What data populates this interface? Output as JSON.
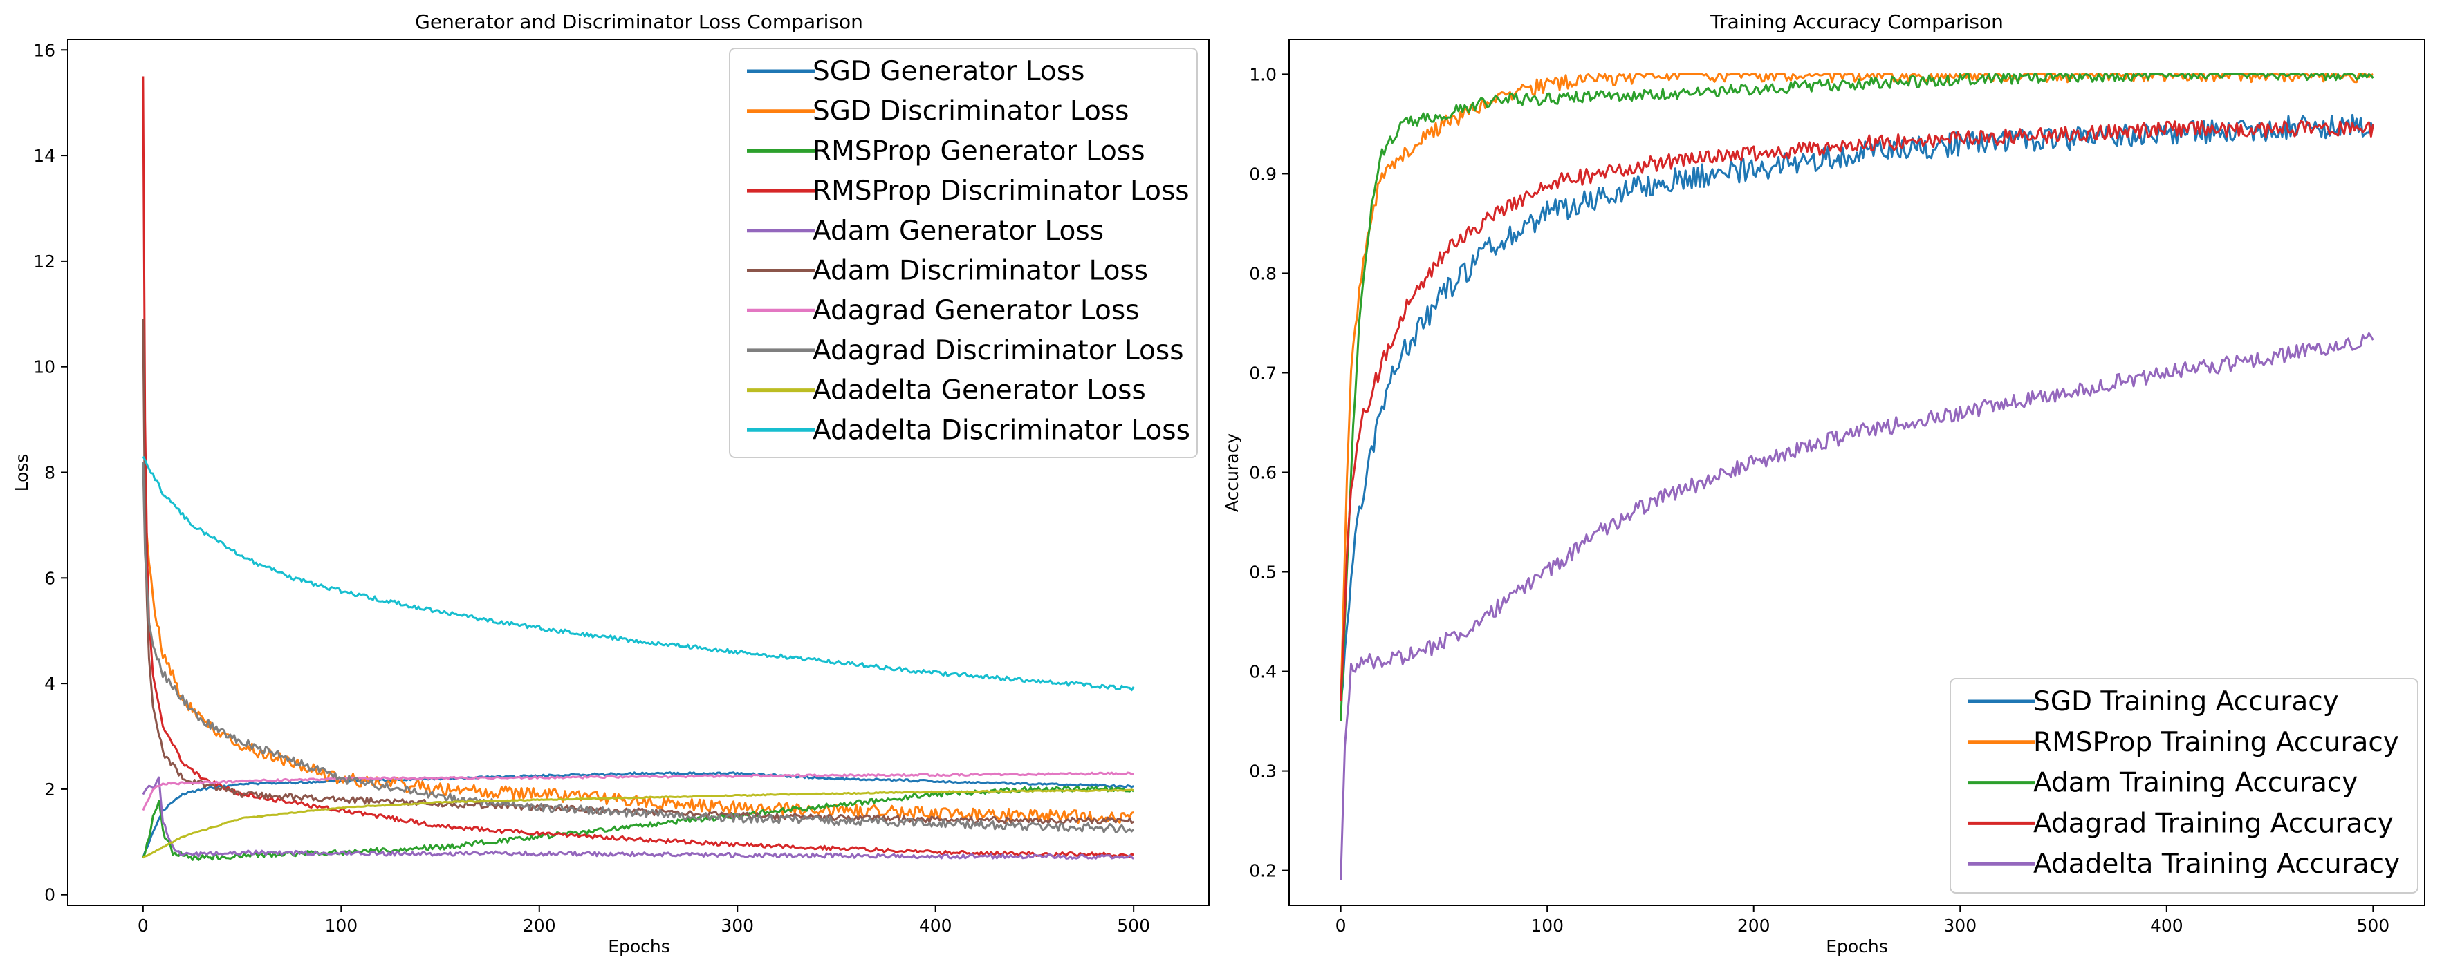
{
  "chart_data": [
    {
      "type": "line",
      "title": "Generator and Discriminator Loss Comparison",
      "xlabel": "Epochs",
      "ylabel": "Loss",
      "xlim": [
        -38,
        538
      ],
      "ylim": [
        -0.2,
        16.2
      ],
      "xticks": [
        0,
        100,
        200,
        300,
        400,
        500
      ],
      "yticks": [
        0,
        2,
        4,
        6,
        8,
        10,
        12,
        14,
        16
      ],
      "legend_position": "top-right",
      "grid": false,
      "series": [
        {
          "name": "SGD Generator Loss",
          "color": "#1f77b4",
          "noise": 0.02,
          "points": [
            [
              0,
              0.7
            ],
            [
              5,
              1.2
            ],
            [
              10,
              1.6
            ],
            [
              20,
              1.9
            ],
            [
              30,
              2.0
            ],
            [
              50,
              2.1
            ],
            [
              100,
              2.15
            ],
            [
              150,
              2.2
            ],
            [
              200,
              2.25
            ],
            [
              250,
              2.3
            ],
            [
              300,
              2.3
            ],
            [
              350,
              2.2
            ],
            [
              400,
              2.15
            ],
            [
              450,
              2.1
            ],
            [
              500,
              2.05
            ]
          ]
        },
        {
          "name": "SGD Discriminator Loss",
          "color": "#ff7f0e",
          "noise": 0.12,
          "points": [
            [
              0,
              8.0
            ],
            [
              1,
              7.3
            ],
            [
              3,
              6.4
            ],
            [
              5,
              5.6
            ],
            [
              10,
              4.6
            ],
            [
              20,
              3.7
            ],
            [
              30,
              3.3
            ],
            [
              50,
              2.8
            ],
            [
              75,
              2.5
            ],
            [
              100,
              2.2
            ],
            [
              150,
              2.0
            ],
            [
              200,
              1.9
            ],
            [
              300,
              1.65
            ],
            [
              400,
              1.55
            ],
            [
              500,
              1.45
            ]
          ]
        },
        {
          "name": "RMSProp Generator Loss",
          "color": "#2ca02c",
          "noise": 0.05,
          "points": [
            [
              0,
              0.7
            ],
            [
              3,
              1.1
            ],
            [
              5,
              1.5
            ],
            [
              8,
              1.8
            ],
            [
              10,
              1.2
            ],
            [
              15,
              0.8
            ],
            [
              25,
              0.7
            ],
            [
              100,
              0.8
            ],
            [
              150,
              0.9
            ],
            [
              200,
              1.1
            ],
            [
              250,
              1.3
            ],
            [
              300,
              1.5
            ],
            [
              350,
              1.7
            ],
            [
              400,
              1.9
            ],
            [
              450,
              2.0
            ],
            [
              500,
              2.0
            ]
          ]
        },
        {
          "name": "RMSProp Discriminator Loss",
          "color": "#d62728",
          "noise": 0.04,
          "points": [
            [
              0,
              15.5
            ],
            [
              1,
              9.0
            ],
            [
              2,
              6.5
            ],
            [
              3,
              5.2
            ],
            [
              5,
              4.2
            ],
            [
              10,
              3.2
            ],
            [
              20,
              2.5
            ],
            [
              30,
              2.2
            ],
            [
              50,
              1.9
            ],
            [
              100,
              1.6
            ],
            [
              150,
              1.3
            ],
            [
              200,
              1.15
            ],
            [
              300,
              0.95
            ],
            [
              400,
              0.8
            ],
            [
              500,
              0.75
            ]
          ]
        },
        {
          "name": "Adam Generator Loss",
          "color": "#9467bd",
          "noise": 0.04,
          "points": [
            [
              0,
              1.9
            ],
            [
              3,
              2.1
            ],
            [
              5,
              2.0
            ],
            [
              8,
              2.2
            ],
            [
              10,
              1.4
            ],
            [
              15,
              0.9
            ],
            [
              20,
              0.75
            ],
            [
              50,
              0.8
            ],
            [
              100,
              0.78
            ],
            [
              200,
              0.78
            ],
            [
              300,
              0.75
            ],
            [
              400,
              0.73
            ],
            [
              500,
              0.72
            ]
          ]
        },
        {
          "name": "Adam Discriminator Loss",
          "color": "#8c564b",
          "noise": 0.06,
          "points": [
            [
              0,
              10.9
            ],
            [
              1,
              7.0
            ],
            [
              2,
              5.5
            ],
            [
              3,
              4.5
            ],
            [
              5,
              3.6
            ],
            [
              10,
              2.7
            ],
            [
              20,
              2.2
            ],
            [
              50,
              1.9
            ],
            [
              100,
              1.8
            ],
            [
              200,
              1.65
            ],
            [
              300,
              1.5
            ],
            [
              400,
              1.42
            ],
            [
              500,
              1.4
            ]
          ]
        },
        {
          "name": "Adagrad Generator Loss",
          "color": "#e377c2",
          "noise": 0.02,
          "points": [
            [
              0,
              1.6
            ],
            [
              5,
              2.0
            ],
            [
              10,
              2.1
            ],
            [
              50,
              2.15
            ],
            [
              100,
              2.2
            ],
            [
              200,
              2.22
            ],
            [
              300,
              2.25
            ],
            [
              400,
              2.27
            ],
            [
              500,
              2.3
            ]
          ]
        },
        {
          "name": "Adagrad Discriminator Loss",
          "color": "#7f7f7f",
          "noise": 0.08,
          "points": [
            [
              0,
              8.2
            ],
            [
              1,
              6.5
            ],
            [
              3,
              5.2
            ],
            [
              5,
              4.7
            ],
            [
              10,
              4.2
            ],
            [
              20,
              3.7
            ],
            [
              30,
              3.3
            ],
            [
              50,
              2.9
            ],
            [
              100,
              2.2
            ],
            [
              150,
              1.85
            ],
            [
              200,
              1.65
            ],
            [
              300,
              1.45
            ],
            [
              400,
              1.35
            ],
            [
              500,
              1.25
            ]
          ]
        },
        {
          "name": "Adadelta Generator Loss",
          "color": "#bcbd22",
          "noise": 0.01,
          "points": [
            [
              0,
              0.7
            ],
            [
              20,
              1.1
            ],
            [
              50,
              1.45
            ],
            [
              100,
              1.65
            ],
            [
              150,
              1.75
            ],
            [
              200,
              1.8
            ],
            [
              300,
              1.88
            ],
            [
              400,
              1.95
            ],
            [
              500,
              1.98
            ]
          ]
        },
        {
          "name": "Adadelta Discriminator Loss",
          "color": "#17becf",
          "noise": 0.04,
          "points": [
            [
              0,
              8.3
            ],
            [
              10,
              7.6
            ],
            [
              25,
              7.0
            ],
            [
              50,
              6.4
            ],
            [
              75,
              6.0
            ],
            [
              100,
              5.75
            ],
            [
              150,
              5.35
            ],
            [
              200,
              5.05
            ],
            [
              250,
              4.8
            ],
            [
              300,
              4.6
            ],
            [
              350,
              4.4
            ],
            [
              400,
              4.2
            ],
            [
              450,
              4.05
            ],
            [
              500,
              3.9
            ]
          ]
        }
      ]
    },
    {
      "type": "line",
      "title": "Training Accuracy Comparison",
      "xlabel": "Epochs",
      "ylabel": "Accuracy",
      "xlim": [
        -25,
        525
      ],
      "ylim": [
        0.165,
        1.035
      ],
      "xticks": [
        0,
        100,
        200,
        300,
        400,
        500
      ],
      "yticks": [
        0.2,
        0.3,
        0.4,
        0.5,
        0.6,
        0.7,
        0.8,
        0.9,
        1.0
      ],
      "legend_position": "bottom-right",
      "grid": false,
      "series": [
        {
          "name": "SGD Training Accuracy",
          "color": "#1f77b4",
          "noise": 0.012,
          "points": [
            [
              0,
              0.37
            ],
            [
              5,
              0.5
            ],
            [
              10,
              0.57
            ],
            [
              20,
              0.67
            ],
            [
              30,
              0.72
            ],
            [
              50,
              0.78
            ],
            [
              75,
              0.83
            ],
            [
              100,
              0.86
            ],
            [
              150,
              0.89
            ],
            [
              200,
              0.905
            ],
            [
              250,
              0.92
            ],
            [
              300,
              0.93
            ],
            [
              350,
              0.935
            ],
            [
              400,
              0.94
            ],
            [
              450,
              0.945
            ],
            [
              500,
              0.95
            ]
          ]
        },
        {
          "name": "RMSProp Training Accuracy",
          "color": "#ff7f0e",
          "noise": 0.008,
          "points": [
            [
              0,
              0.37
            ],
            [
              3,
              0.6
            ],
            [
              5,
              0.7
            ],
            [
              10,
              0.8
            ],
            [
              15,
              0.86
            ],
            [
              20,
              0.9
            ],
            [
              30,
              0.92
            ],
            [
              50,
              0.95
            ],
            [
              75,
              0.975
            ],
            [
              100,
              0.99
            ],
            [
              150,
              1.0
            ],
            [
              300,
              1.0
            ],
            [
              500,
              1.0
            ]
          ]
        },
        {
          "name": "Adam Training Accuracy",
          "color": "#2ca02c",
          "noise": 0.006,
          "points": [
            [
              0,
              0.35
            ],
            [
              3,
              0.5
            ],
            [
              6,
              0.65
            ],
            [
              10,
              0.78
            ],
            [
              15,
              0.87
            ],
            [
              20,
              0.92
            ],
            [
              30,
              0.95
            ],
            [
              50,
              0.96
            ],
            [
              75,
              0.975
            ],
            [
              100,
              0.975
            ],
            [
              150,
              0.98
            ],
            [
              200,
              0.985
            ],
            [
              250,
              0.99
            ],
            [
              300,
              0.995
            ],
            [
              400,
              1.0
            ],
            [
              500,
              1.0
            ]
          ]
        },
        {
          "name": "Adagrad Training Accuracy",
          "color": "#d62728",
          "noise": 0.008,
          "points": [
            [
              0,
              0.37
            ],
            [
              3,
              0.52
            ],
            [
              5,
              0.58
            ],
            [
              10,
              0.65
            ],
            [
              20,
              0.71
            ],
            [
              30,
              0.76
            ],
            [
              50,
              0.82
            ],
            [
              75,
              0.86
            ],
            [
              100,
              0.89
            ],
            [
              150,
              0.91
            ],
            [
              200,
              0.92
            ],
            [
              250,
              0.93
            ],
            [
              300,
              0.935
            ],
            [
              350,
              0.94
            ],
            [
              400,
              0.945
            ],
            [
              450,
              0.945
            ],
            [
              500,
              0.945
            ]
          ]
        },
        {
          "name": "Adadelta Training Accuracy",
          "color": "#9467bd",
          "noise": 0.008,
          "points": [
            [
              0,
              0.19
            ],
            [
              2,
              0.33
            ],
            [
              5,
              0.4
            ],
            [
              10,
              0.41
            ],
            [
              20,
              0.41
            ],
            [
              40,
              0.42
            ],
            [
              60,
              0.44
            ],
            [
              80,
              0.47
            ],
            [
              100,
              0.5
            ],
            [
              125,
              0.54
            ],
            [
              150,
              0.57
            ],
            [
              200,
              0.61
            ],
            [
              250,
              0.64
            ],
            [
              300,
              0.66
            ],
            [
              350,
              0.68
            ],
            [
              400,
              0.7
            ],
            [
              450,
              0.715
            ],
            [
              500,
              0.735
            ]
          ]
        }
      ]
    }
  ]
}
